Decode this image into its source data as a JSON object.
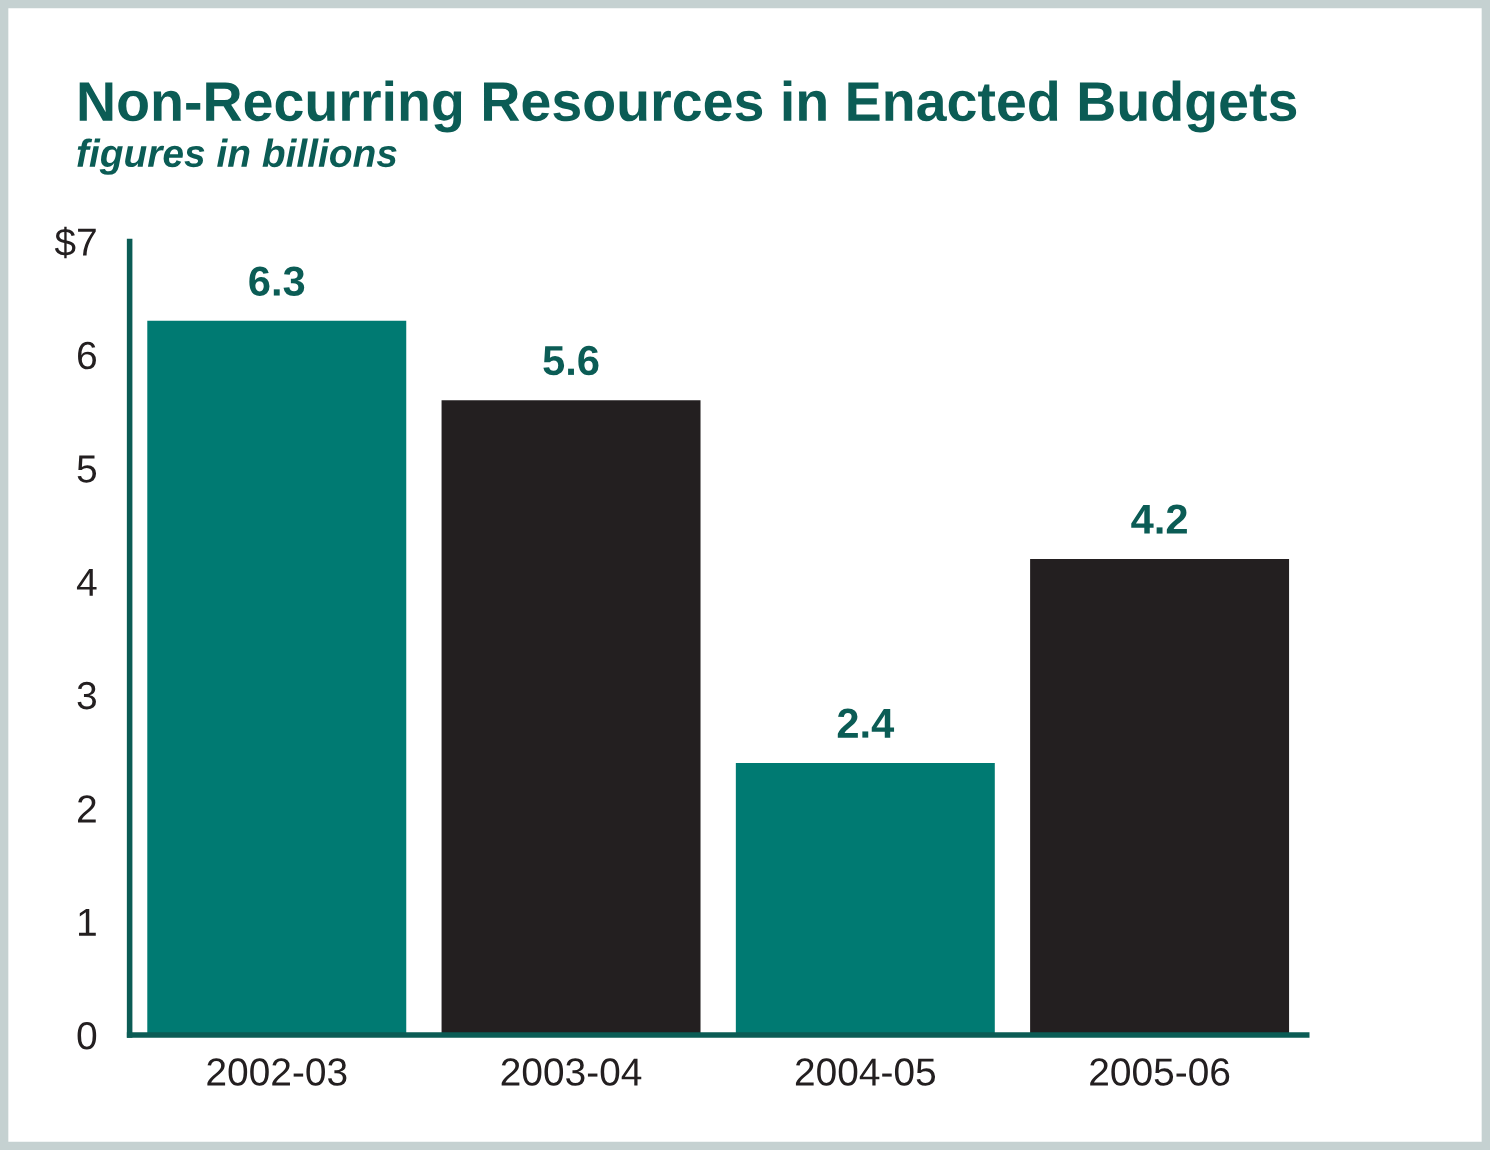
{
  "chart_data": {
    "type": "bar",
    "title": "Non-Recurring Resources in Enacted Budgets",
    "subtitle": "figures in billions",
    "categories": [
      "2002-03",
      "2003-04",
      "2004-05",
      "2005-06"
    ],
    "values": [
      6.3,
      5.6,
      2.4,
      4.2
    ],
    "colors": [
      "#007a72",
      "#231f20",
      "#007a72",
      "#231f20"
    ],
    "data_labels": true,
    "ylim": [
      0,
      7
    ],
    "yticks": [
      0,
      1,
      2,
      3,
      4,
      5,
      6,
      {
        "value": 7,
        "label": "$7"
      }
    ],
    "grid": false,
    "legend": false
  }
}
